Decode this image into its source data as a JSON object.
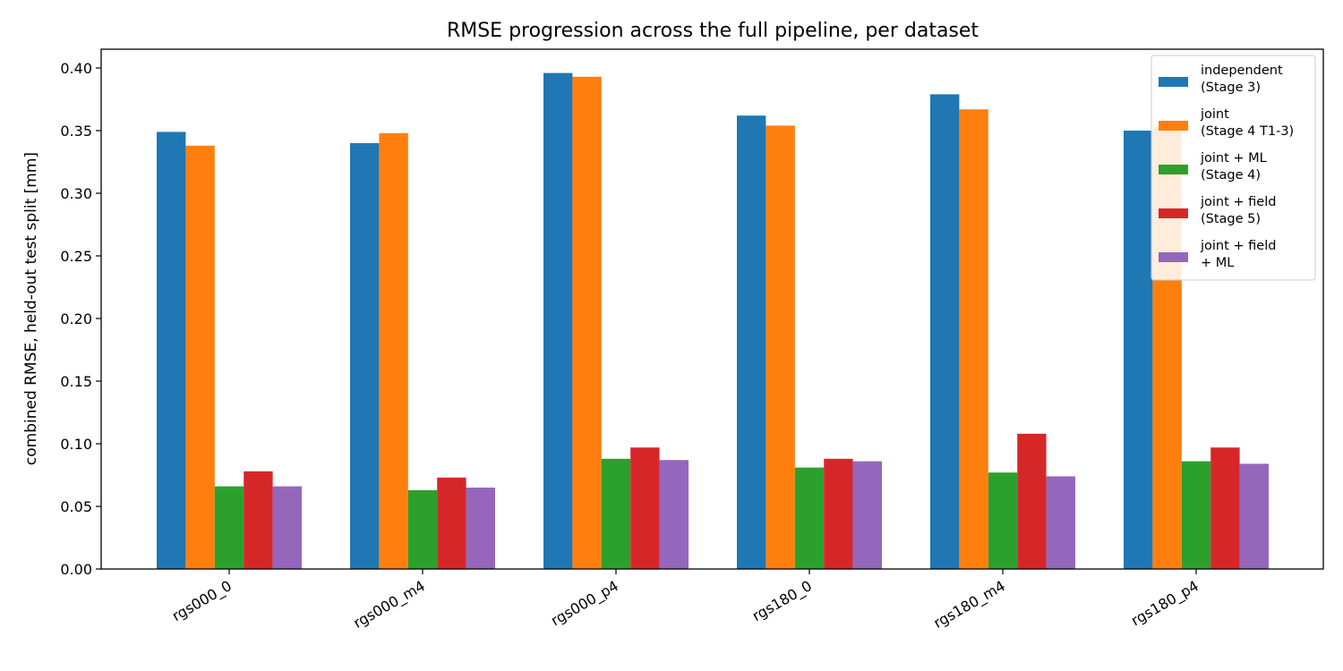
{
  "chart_data": {
    "type": "bar",
    "title": "RMSE progression across the full pipeline, per dataset",
    "xlabel": "",
    "ylabel": "combined RMSE, held-out test split [mm]",
    "ylim": [
      0.0,
      0.415
    ],
    "yticks": [
      "0.00",
      "0.05",
      "0.10",
      "0.15",
      "0.20",
      "0.25",
      "0.30",
      "0.35",
      "0.40"
    ],
    "ytick_values": [
      0.0,
      0.05,
      0.1,
      0.15,
      0.2,
      0.25,
      0.3,
      0.35,
      0.4
    ],
    "grid": false,
    "legend_position": "top-right",
    "categories": [
      "rgs000_0",
      "rgs000_m4",
      "rgs000_p4",
      "rgs180_0",
      "rgs180_m4",
      "rgs180_p4"
    ],
    "series": [
      {
        "name": "independent\n(Stage 3)",
        "color": "#1f77b4",
        "values": [
          0.349,
          0.34,
          0.396,
          0.362,
          0.379,
          0.35
        ]
      },
      {
        "name": "joint\n(Stage 4 T1-3)",
        "color": "#ff7f0e",
        "values": [
          0.338,
          0.348,
          0.393,
          0.354,
          0.367,
          0.353
        ]
      },
      {
        "name": "joint + ML\n(Stage 4)",
        "color": "#2ca02c",
        "values": [
          0.066,
          0.063,
          0.088,
          0.081,
          0.077,
          0.086
        ]
      },
      {
        "name": "joint + field\n(Stage 5)",
        "color": "#d62728",
        "values": [
          0.078,
          0.073,
          0.097,
          0.088,
          0.108,
          0.097
        ]
      },
      {
        "name": "joint + field\n+ ML",
        "color": "#9467bd",
        "values": [
          0.066,
          0.065,
          0.087,
          0.086,
          0.074,
          0.084
        ]
      }
    ]
  }
}
